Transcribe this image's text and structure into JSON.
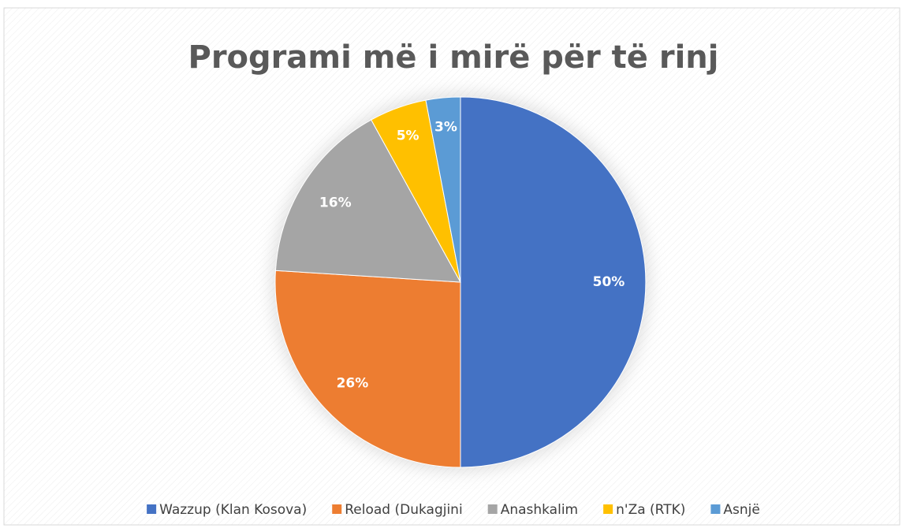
{
  "chart_data": {
    "type": "pie",
    "title": "Programi më i mirë për të rinj",
    "categories": [
      "Wazzup (Klan Kosova)",
      "Reload (Dukagjini",
      "Anashkalim",
      "n'Za (RTK)",
      "Asnjë"
    ],
    "values": [
      50,
      26,
      16,
      5,
      3
    ],
    "value_labels": [
      "50%",
      "26%",
      "16%",
      "5%",
      "3%"
    ],
    "colors": [
      "#4472c4",
      "#ed7d31",
      "#a5a5a5",
      "#ffc000",
      "#5b9bd5"
    ],
    "legend": "bottom"
  }
}
